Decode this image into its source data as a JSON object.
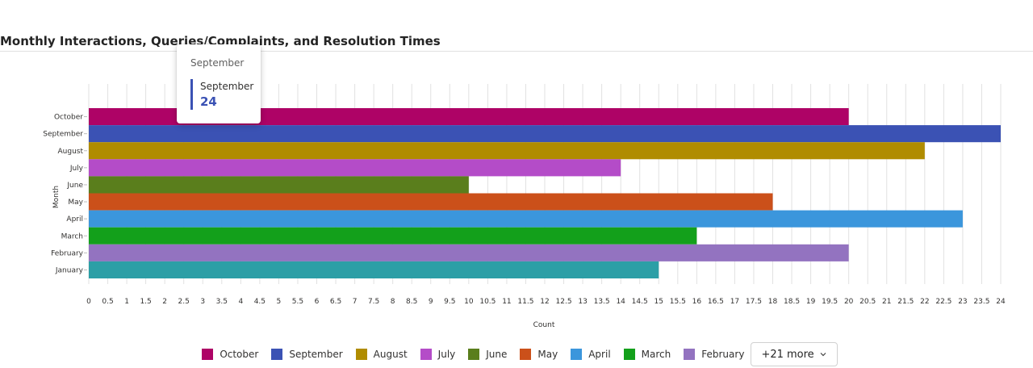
{
  "title": "Monthly Interactions, Queries/Complaints, and Resolution Times",
  "chart_data": {
    "type": "bar",
    "orientation": "horizontal",
    "xlabel": "Count",
    "ylabel": "Month",
    "xlim": [
      0,
      24
    ],
    "xticks": [
      "0",
      "0.5",
      "1",
      "1.5",
      "2",
      "2.5",
      "3",
      "3.5",
      "4",
      "4.5",
      "5",
      "5.5",
      "6",
      "6.5",
      "7",
      "7.5",
      "8",
      "8.5",
      "9",
      "9.5",
      "10",
      "10.5",
      "11",
      "11.5",
      "12",
      "12.5",
      "13",
      "13.5",
      "14",
      "14.5",
      "15",
      "15.5",
      "16",
      "16.5",
      "17",
      "17.5",
      "18",
      "18.5",
      "19",
      "19.5",
      "20",
      "20.5",
      "21",
      "21.5",
      "22",
      "22.5",
      "23",
      "23.5",
      "24"
    ],
    "grid": true,
    "categories": [
      "October",
      "September",
      "August",
      "July",
      "June",
      "May",
      "April",
      "March",
      "February",
      "January"
    ],
    "values": [
      20,
      24,
      22,
      14,
      10,
      18,
      23,
      16,
      20,
      15
    ],
    "colors": [
      "#ae0366",
      "#3b52b4",
      "#b08c00",
      "#b44cc8",
      "#5a7e1c",
      "#cb501a",
      "#3b96dc",
      "#13a01b",
      "#9373c0",
      "#2c9fa6"
    ]
  },
  "legend": {
    "items": [
      {
        "label": "October",
        "color": "#ae0366"
      },
      {
        "label": "September",
        "color": "#3b52b4"
      },
      {
        "label": "August",
        "color": "#b08c00"
      },
      {
        "label": "July",
        "color": "#b44cc8"
      },
      {
        "label": "June",
        "color": "#5a7e1c"
      },
      {
        "label": "May",
        "color": "#cb501a"
      },
      {
        "label": "April",
        "color": "#3b96dc"
      },
      {
        "label": "March",
        "color": "#13a01b"
      },
      {
        "label": "February",
        "color": "#9373c0"
      }
    ],
    "more_label": "+21 more"
  },
  "tooltip": {
    "header": "September",
    "series_label": "September",
    "value": "24",
    "accent_color": "#3b52b4"
  }
}
